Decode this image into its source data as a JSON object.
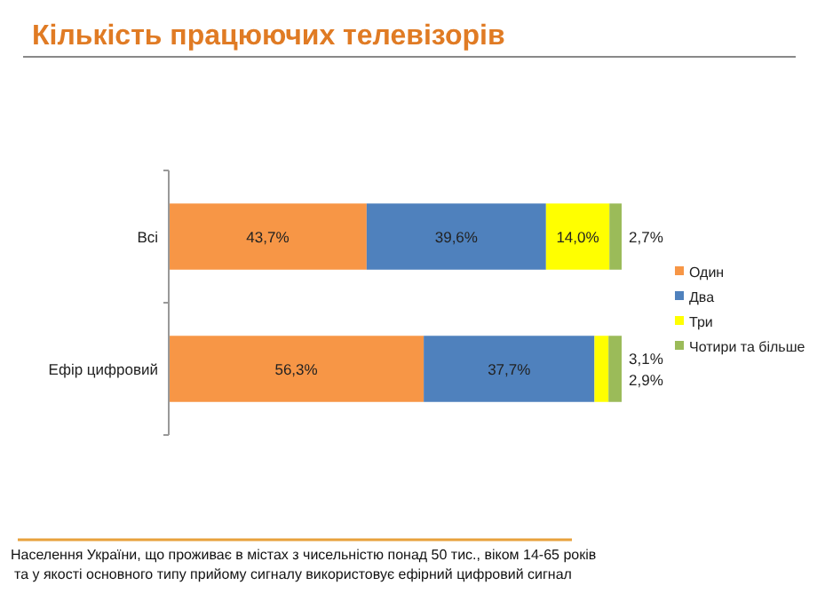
{
  "chart_data": {
    "type": "bar",
    "orientation": "horizontal",
    "stacked": true,
    "title": "Кількість працюючих телевізорів",
    "categories": [
      "Всі",
      "Ефір цифровий"
    ],
    "series": [
      {
        "name": "Один",
        "color": "#f79646",
        "values": [
          43.7,
          56.3
        ],
        "value_labels": [
          "43,7%",
          "56,3%"
        ]
      },
      {
        "name": "Два",
        "color": "#4f81bd",
        "values": [
          39.6,
          37.7
        ],
        "value_labels": [
          "39,6%",
          "37,7%"
        ]
      },
      {
        "name": "Три",
        "color": "#ffff00",
        "values": [
          14.0,
          3.1
        ],
        "value_labels": [
          "14,0%",
          "3,1%"
        ]
      },
      {
        "name": "Чотири та більше",
        "color": "#9bbb59",
        "values": [
          2.7,
          2.9
        ],
        "value_labels": [
          "2,7%",
          "2,9%"
        ]
      }
    ],
    "legend": "right",
    "annotations": [
      "Населення України, що проживає в містах з чисельністю понад 50 тис., віком 14-65 років",
      "та у якості основного типу прийому сигналу використовує ефірний цифровий сигнал"
    ]
  }
}
